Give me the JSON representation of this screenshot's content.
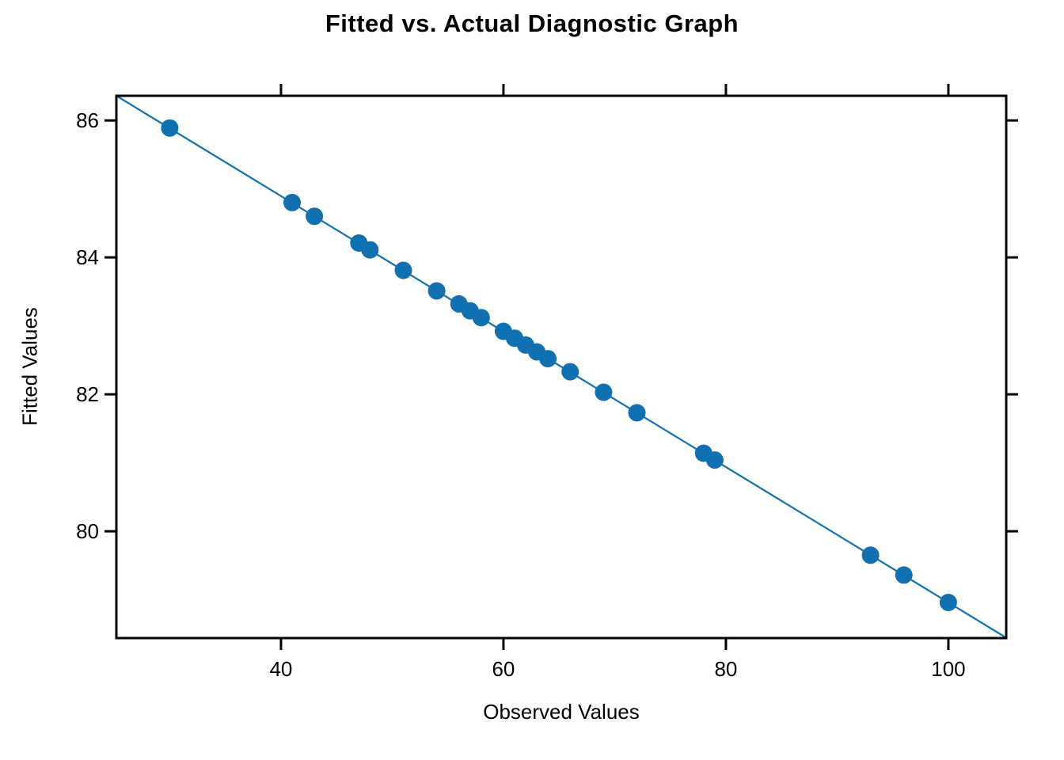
{
  "title": "Fitted vs. Actual Diagnostic Graph",
  "chart_data": {
    "type": "scatter",
    "title": "Fitted vs. Actual Diagnostic Graph",
    "xlabel": "Observed Values",
    "ylabel": "Fitted Values",
    "points": {
      "observed": [
        30,
        41,
        43,
        47,
        48,
        51,
        54,
        56,
        57,
        58,
        60,
        61,
        62,
        63,
        64,
        66,
        69,
        72,
        78,
        79,
        93,
        96,
        100
      ],
      "fitted": [
        85.89,
        84.8,
        84.6,
        84.21,
        84.11,
        83.81,
        83.51,
        83.32,
        83.22,
        83.12,
        82.92,
        82.82,
        82.72,
        82.62,
        82.52,
        82.33,
        82.03,
        81.73,
        81.14,
        81.04,
        79.65,
        79.36,
        78.96
      ]
    },
    "fit_line": {
      "intercept": 88.86,
      "slope": -0.099
    },
    "x_ticks": [
      "40",
      "60",
      "80",
      "100"
    ],
    "x_tick_values": [
      40,
      60,
      80,
      100
    ],
    "y_ticks": [
      "80",
      "82",
      "84",
      "86"
    ],
    "y_tick_values": [
      80,
      82,
      84,
      86
    ],
    "xlim": [
      25.2,
      105.2
    ],
    "ylim": [
      78.44,
      86.36
    ],
    "grid": false,
    "legend": null,
    "point_color": "#1171b0",
    "line_color": "#1171b0",
    "axis_color": "#000000",
    "tick_sides": [
      "bottom",
      "top",
      "left",
      "right"
    ]
  }
}
